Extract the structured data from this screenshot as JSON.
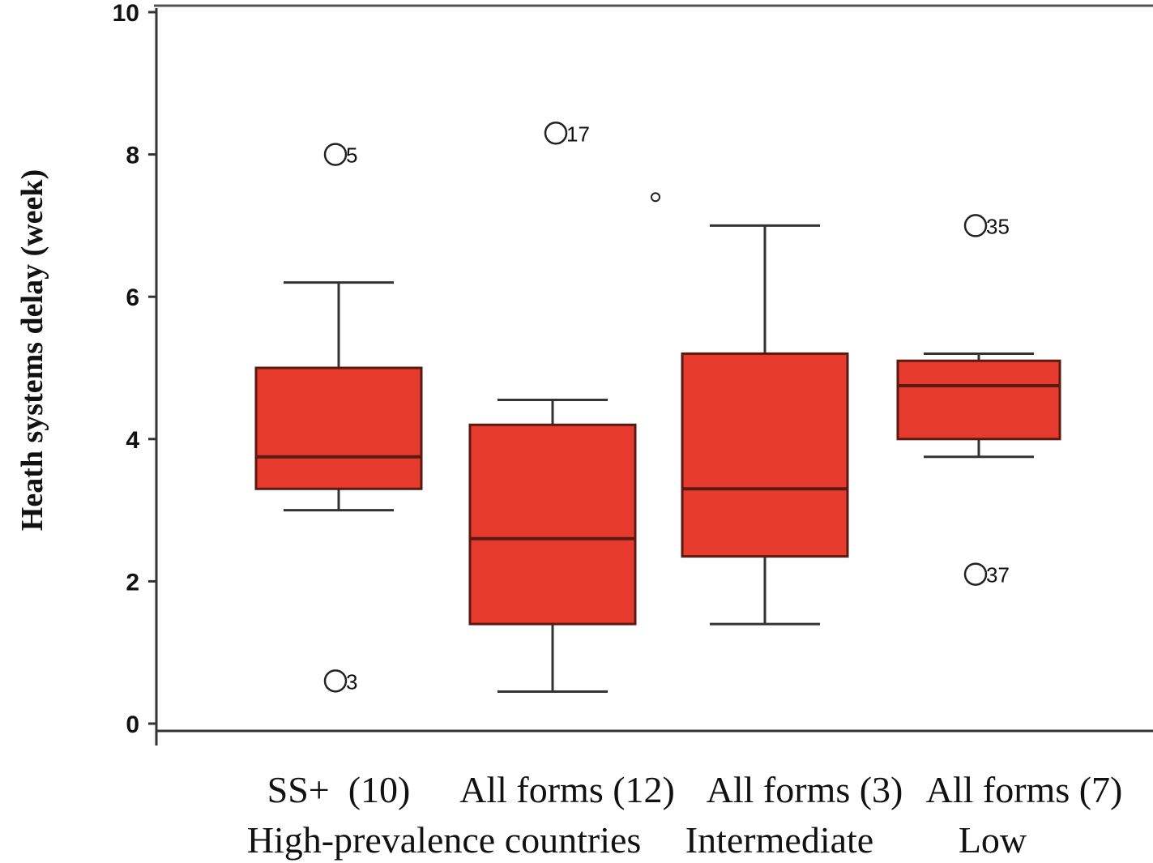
{
  "chart_data": {
    "type": "box",
    "ylabel": "Heath systems delay (week)",
    "ylim": [
      0,
      10
    ],
    "yticks": [
      "0",
      "2",
      "4",
      "6",
      "8",
      "10"
    ],
    "box_color": "#e63a2c",
    "categories": [
      "SS+  (10)",
      "All forms (12)",
      "All forms (3)",
      "All forms (7)"
    ],
    "groups": [
      "High-prevalence countries",
      "Intermediate",
      "Low"
    ],
    "boxes": [
      {
        "whisker_low": 3.0,
        "q1": 3.3,
        "median": 3.75,
        "q3": 5.0,
        "whisker_high": 6.2
      },
      {
        "whisker_low": 0.45,
        "q1": 1.4,
        "median": 2.6,
        "q3": 4.2,
        "whisker_high": 4.55
      },
      {
        "whisker_low": 1.4,
        "q1": 2.35,
        "median": 3.3,
        "q3": 5.2,
        "whisker_high": 7.0
      },
      {
        "whisker_low": 3.75,
        "q1": 4.0,
        "median": 4.75,
        "q3": 5.1,
        "whisker_high": 5.2
      }
    ],
    "outliers": [
      {
        "box": 0,
        "y": 8.0,
        "label": "5"
      },
      {
        "box": 0,
        "y": 0.6,
        "label": "3"
      },
      {
        "box": 1,
        "y": 8.3,
        "label": "17"
      },
      {
        "box": 1,
        "y": 7.4,
        "label": ""
      },
      {
        "box": 3,
        "y": 7.0,
        "label": "35"
      },
      {
        "box": 3,
        "y": 2.1,
        "label": "37"
      }
    ]
  }
}
